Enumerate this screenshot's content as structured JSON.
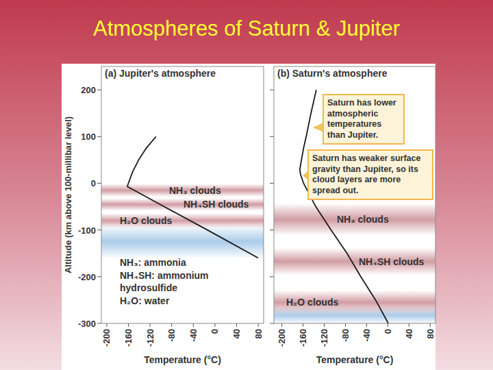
{
  "title": "Atmospheres of Saturn & Jupiter",
  "chart_data": [
    {
      "type": "line",
      "title": "(a) Jupiter's atmosphere",
      "x_label": "Temperature (°C)",
      "y_label": "Altitude (km above 100-millibar level)",
      "x": [
        -109,
        -127,
        -141,
        -152,
        -160,
        -162,
        -94,
        -14,
        80
      ],
      "series": [
        {
          "values": [
            100,
            75,
            50,
            25,
            0,
            -7,
            -50,
            -100,
            -160
          ],
          "color": "#1a1a1a"
        }
      ],
      "xlim": [
        -210,
        90
      ],
      "ylim": [
        -300,
        250
      ],
      "xticks": [
        -200,
        -160,
        -120,
        -80,
        -40,
        0,
        40,
        80
      ],
      "yticks": [
        -300,
        -200,
        -100,
        0,
        100,
        200
      ],
      "bands": [
        {
          "from": -90,
          "to": -160,
          "color": "#9cc3e6"
        },
        {
          "label": "NH₃ clouds",
          "from": -2,
          "to": -28,
          "color": "#c98b93"
        },
        {
          "label": "NH₄SH clouds",
          "from": -33,
          "to": -58,
          "color": "#c98b93"
        },
        {
          "label": "H₂O clouds",
          "from": -65,
          "to": -95,
          "color": "#c98b93"
        }
      ],
      "notes": [
        "NH₃: ammonia",
        "NH₄SH: ammonium hydrosulfide",
        "H₂O: water"
      ]
    },
    {
      "type": "line",
      "title": "(b) Saturn's atmosphere",
      "x_label": "Temperature (°C)",
      "tick_labels": "x",
      "x": [
        -135,
        -145,
        -154,
        -159,
        -163,
        -166,
        -165,
        -159,
        -136,
        -107,
        -77,
        -51,
        -23,
        1
      ],
      "series": [
        {
          "values": [
            200,
            150,
            100,
            75,
            50,
            30,
            20,
            0,
            -50,
            -100,
            -150,
            -200,
            -250,
            -300
          ],
          "color": "#1a1a1a"
        }
      ],
      "xlim": [
        -215,
        90
      ],
      "ylim": [
        -300,
        250
      ],
      "xticks": [
        -200,
        -160,
        -120,
        -80,
        -40,
        0,
        40,
        80
      ],
      "yticks": [
        -300,
        -200,
        -100,
        0,
        100,
        200
      ],
      "bands": [
        {
          "from": -265,
          "to": -300,
          "color": "#9cc3e6"
        },
        {
          "label": "NH₃ clouds",
          "from": -45,
          "to": -110,
          "color": "#c98b93"
        },
        {
          "label": "NH₄SH clouds",
          "from": -140,
          "to": -195,
          "color": "#c98b93"
        },
        {
          "label": "H₂O clouds",
          "from": -230,
          "to": -280,
          "color": "#c98b93"
        }
      ],
      "annotations": [
        {
          "text": "Saturn has lower atmospheric temperatures than Jupiter."
        },
        {
          "text": "Saturn has weaker surface gravity than Jupiter, so its cloud layers are more spread out."
        }
      ]
    }
  ]
}
